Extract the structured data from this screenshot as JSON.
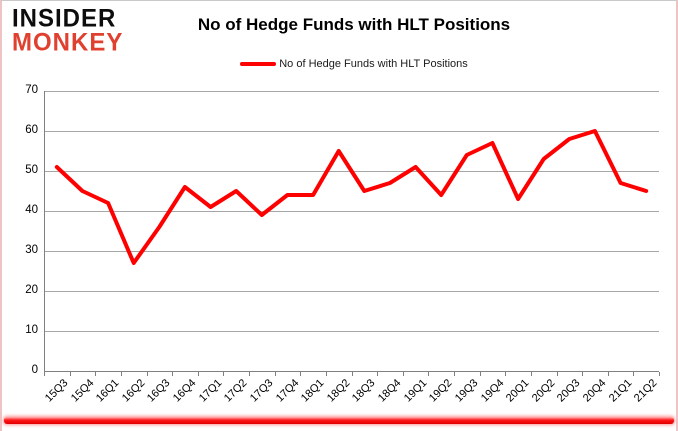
{
  "logo": {
    "line1": "INSIDER",
    "line2": "MONKEY"
  },
  "header": {
    "title": "No of Hedge Funds with HLT Positions"
  },
  "legend": {
    "label": "No of Hedge Funds with HLT Positions"
  },
  "colors": {
    "series_line": "#ff0000",
    "gridline": "#a6a6a6",
    "axis": "#808080",
    "logo_black": "#0d0d0d",
    "logo_red": "#e0402f",
    "bottom_bar_red": "#ff1515"
  },
  "chart_data": {
    "type": "line",
    "title": "No of Hedge Funds with HLT Positions",
    "categories": [
      "15Q3",
      "15Q4",
      "16Q1",
      "16Q2",
      "16Q3",
      "16Q4",
      "17Q1",
      "17Q2",
      "17Q3",
      "17Q4",
      "18Q1",
      "18Q2",
      "18Q3",
      "18Q4",
      "19Q1",
      "19Q2",
      "19Q3",
      "19Q4",
      "20Q1",
      "20Q2",
      "20Q3",
      "20Q4",
      "21Q1",
      "21Q2"
    ],
    "series": [
      {
        "name": "No of Hedge Funds with HLT Positions",
        "color": "#ff0000",
        "values": [
          51,
          45,
          42,
          27,
          36,
          46,
          41,
          45,
          39,
          44,
          44,
          55,
          45,
          47,
          51,
          44,
          54,
          57,
          43,
          53,
          58,
          60,
          47,
          45
        ]
      }
    ],
    "xlabel": "",
    "ylabel": "",
    "ylim": [
      0,
      70
    ],
    "yticks": [
      0,
      10,
      20,
      30,
      40,
      50,
      60,
      70
    ],
    "grid": true,
    "legend_position": "top-center",
    "x_tick_label_rotation_deg": -45
  }
}
